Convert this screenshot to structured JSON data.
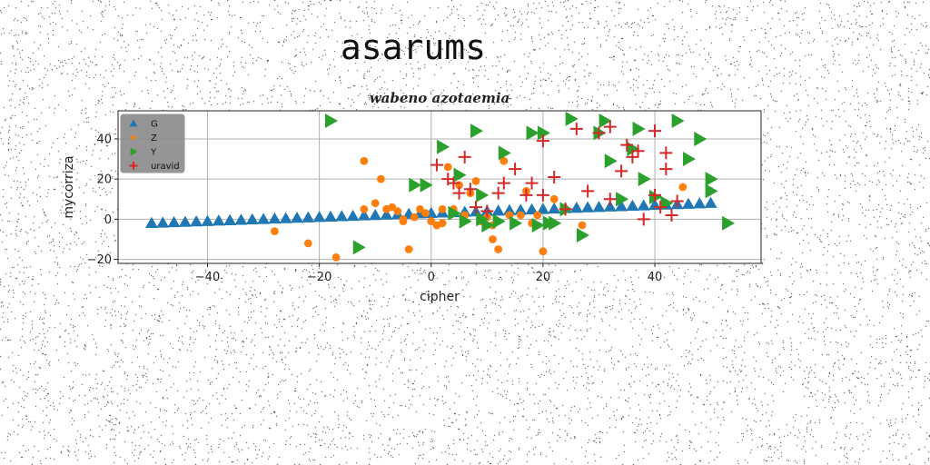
{
  "page": {
    "heading": "asarums"
  },
  "chart_data": {
    "type": "scatter",
    "title": "wabeno azotaemia",
    "xlabel": "cipher",
    "ylabel": "mycorriza",
    "xlim": [
      -56,
      59
    ],
    "ylim": [
      -22,
      54
    ],
    "xticks": [
      -40,
      -20,
      0,
      20,
      40
    ],
    "yticks": [
      -20,
      0,
      20,
      40
    ],
    "grid": true,
    "legend": {
      "placement": "top-left",
      "background": "#8a8a8a"
    },
    "series": [
      {
        "name": "G",
        "marker": "triangle-up",
        "color": "#1f77b4",
        "x": [
          -50,
          -48,
          -46,
          -44,
          -42,
          -40,
          -38,
          -36,
          -34,
          -32,
          -30,
          -28,
          -26,
          -24,
          -22,
          -20,
          -18,
          -16,
          -14,
          -12,
          -10,
          -8,
          -6,
          -4,
          -2,
          0,
          2,
          4,
          6,
          8,
          10,
          12,
          14,
          16,
          18,
          20,
          22,
          24,
          26,
          28,
          30,
          32,
          34,
          36,
          38,
          40,
          42,
          44,
          46,
          48,
          50
        ],
        "y": [
          -2,
          -1.8,
          -1.6,
          -1.4,
          -1.2,
          -1,
          -0.8,
          -0.6,
          -0.4,
          -0.2,
          0,
          0.2,
          0.4,
          0.6,
          0.8,
          1,
          1.2,
          1.4,
          1.6,
          1.8,
          2,
          2.2,
          2.4,
          2.6,
          2.8,
          3,
          3.2,
          3.4,
          3.6,
          3.8,
          4,
          4.2,
          4.4,
          4.6,
          4.8,
          5,
          5.2,
          5.4,
          5.6,
          5.8,
          6,
          6.2,
          6.4,
          6.6,
          6.8,
          7,
          7.2,
          7.4,
          7.6,
          7.8,
          8
        ]
      },
      {
        "name": "Z",
        "marker": "circle",
        "color": "#ff7f0e",
        "x": [
          -28,
          -22,
          -17,
          -12,
          -12,
          -10,
          -9,
          -8,
          -7,
          -6,
          -5,
          -4,
          -3,
          -2,
          -1,
          0,
          1,
          2,
          3,
          4,
          5,
          6,
          7,
          8,
          9,
          10,
          11,
          12,
          13,
          14,
          16,
          17,
          18,
          19,
          20,
          22,
          24,
          27,
          45,
          -5,
          11,
          2
        ],
        "y": [
          -6,
          -12,
          -19,
          29,
          5,
          8,
          20,
          5,
          6,
          4,
          0,
          -15,
          1,
          5,
          3,
          -1,
          -3,
          -2,
          26,
          5,
          17,
          2,
          13,
          19,
          -1,
          1,
          -10,
          -15,
          29,
          2,
          2,
          14,
          -2,
          2,
          -16,
          10,
          5,
          -3,
          16,
          -1,
          -3,
          5
        ]
      },
      {
        "name": "Y",
        "marker": "triangle-right",
        "color": "#2ca02c",
        "x": [
          -18,
          -13,
          -3,
          -1,
          2,
          4,
          6,
          8,
          9,
          10,
          12,
          13,
          15,
          18,
          19,
          20,
          22,
          24,
          25,
          27,
          30,
          31,
          32,
          34,
          36,
          38,
          40,
          42,
          44,
          46,
          48,
          50,
          50,
          53,
          5,
          9,
          21,
          37
        ],
        "y": [
          49,
          -14,
          17,
          17,
          36,
          3,
          -1,
          44,
          12,
          -3,
          -1,
          33,
          -2,
          43,
          -3,
          43,
          -2,
          5,
          50,
          -8,
          43,
          49,
          29,
          10,
          35,
          20,
          11,
          8,
          49,
          30,
          40,
          14,
          20,
          -2,
          22,
          0,
          -2,
          45
        ]
      },
      {
        "name": "uravid",
        "marker": "plus",
        "color": "#d62728",
        "x": [
          1,
          3,
          4,
          5,
          6,
          7,
          8,
          10,
          12,
          13,
          15,
          17,
          18,
          20,
          20,
          22,
          24,
          26,
          28,
          30,
          32,
          32,
          34,
          35,
          36,
          37,
          38,
          40,
          40,
          41,
          42,
          42,
          43,
          44
        ],
        "y": [
          27,
          20,
          18,
          13,
          31,
          15,
          6,
          4,
          13,
          18,
          25,
          12,
          18,
          12,
          39,
          21,
          5,
          45,
          14,
          43,
          46,
          10,
          24,
          37,
          31,
          34,
          0,
          12,
          44,
          6,
          33,
          25,
          2,
          9
        ]
      }
    ]
  }
}
